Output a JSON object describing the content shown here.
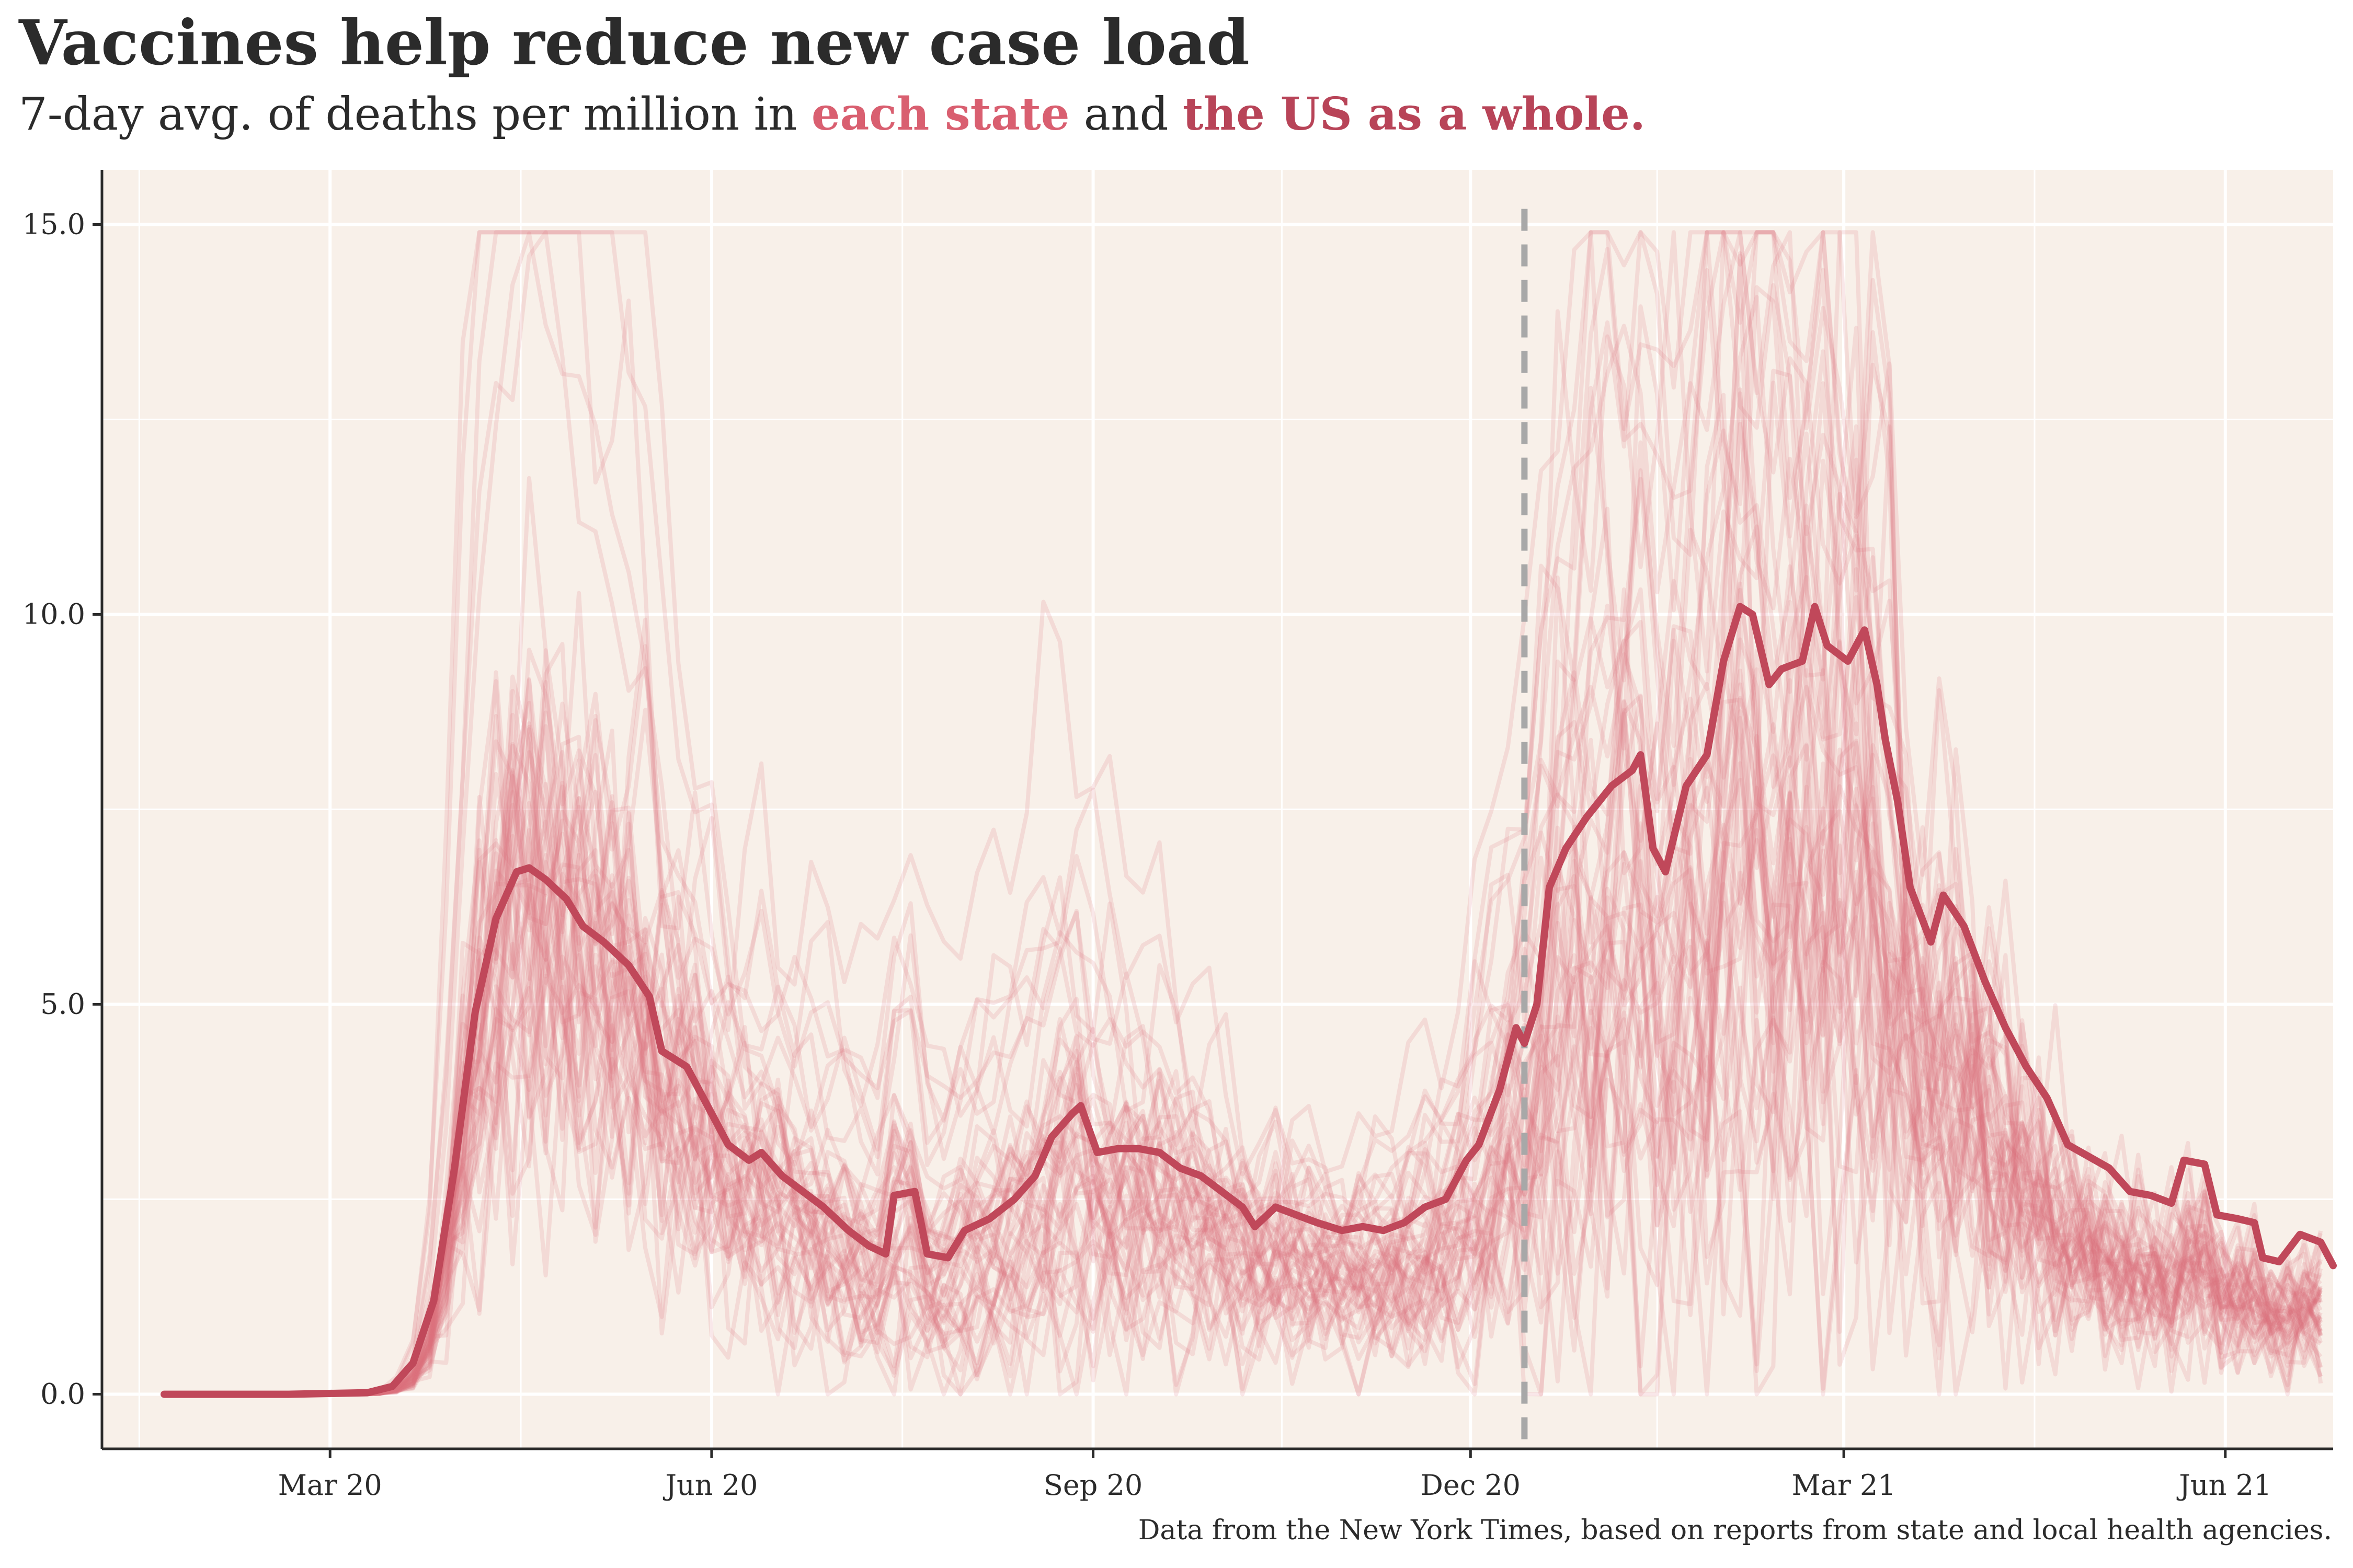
{
  "chart_data": {
    "type": "line",
    "title": "Vaccines help reduce new case load",
    "subtitle": {
      "prefix": "7-day avg. of deaths per million in ",
      "states_label": "each state",
      "middle": " and ",
      "us_label": "the US as a whole."
    },
    "caption": "Data from the New York Times, based on reports from state and local health agencies.",
    "xlabel": "",
    "ylabel": "",
    "x_ticks": [
      {
        "date": "2020-03-01",
        "label": "Mar 20"
      },
      {
        "date": "2020-06-01",
        "label": "Jun 20"
      },
      {
        "date": "2020-09-01",
        "label": "Sep 20"
      },
      {
        "date": "2020-12-01",
        "label": "Dec 20"
      },
      {
        "date": "2021-03-01",
        "label": "Mar 21"
      },
      {
        "date": "2021-06-01",
        "label": "Jun 21"
      }
    ],
    "y_ticks": [
      {
        "value": 0,
        "label": "0.0"
      },
      {
        "value": 5,
        "label": "5.0"
      },
      {
        "value": 10,
        "label": "10.0"
      },
      {
        "value": 15,
        "label": "15.0"
      }
    ],
    "xlim": [
      "2020-01-06",
      "2021-06-27"
    ],
    "ylim": [
      -0.7,
      15.7
    ],
    "vline": {
      "date": "2020-12-14",
      "style": "dashed"
    },
    "colors": {
      "panel_bg": "#f8f0e9",
      "grid": "#ffffff",
      "states": "#d9707e",
      "us": "#c0485a",
      "vline": "#a8a8a8",
      "axis": "#2b2b2b",
      "text": "#2b2b2b"
    },
    "series": [
      {
        "name": "the US as a whole.",
        "points": [
          [
            "2020-01-21",
            0
          ],
          [
            "2020-02-20",
            0
          ],
          [
            "2020-03-10",
            0.02
          ],
          [
            "2020-03-16",
            0.1
          ],
          [
            "2020-03-21",
            0.4
          ],
          [
            "2020-03-26",
            1.2
          ],
          [
            "2020-03-31",
            2.9
          ],
          [
            "2020-04-05",
            4.9
          ],
          [
            "2020-04-10",
            6.1
          ],
          [
            "2020-04-15",
            6.7
          ],
          [
            "2020-04-18",
            6.75
          ],
          [
            "2020-04-22",
            6.6
          ],
          [
            "2020-04-27",
            6.35
          ],
          [
            "2020-05-01",
            6.0
          ],
          [
            "2020-05-06",
            5.8
          ],
          [
            "2020-05-12",
            5.5
          ],
          [
            "2020-05-17",
            5.1
          ],
          [
            "2020-05-20",
            4.4
          ],
          [
            "2020-05-26",
            4.2
          ],
          [
            "2020-05-31",
            3.7
          ],
          [
            "2020-06-05",
            3.2
          ],
          [
            "2020-06-10",
            3.0
          ],
          [
            "2020-06-13",
            3.1
          ],
          [
            "2020-06-18",
            2.8
          ],
          [
            "2020-06-23",
            2.6
          ],
          [
            "2020-06-28",
            2.4
          ],
          [
            "2020-07-04",
            2.1
          ],
          [
            "2020-07-09",
            1.9
          ],
          [
            "2020-07-13",
            1.8
          ],
          [
            "2020-07-15",
            2.55
          ],
          [
            "2020-07-20",
            2.6
          ],
          [
            "2020-07-23",
            1.8
          ],
          [
            "2020-07-28",
            1.75
          ],
          [
            "2020-08-01",
            2.1
          ],
          [
            "2020-08-07",
            2.25
          ],
          [
            "2020-08-13",
            2.5
          ],
          [
            "2020-08-18",
            2.8
          ],
          [
            "2020-08-22",
            3.3
          ],
          [
            "2020-08-27",
            3.6
          ],
          [
            "2020-08-29",
            3.7
          ],
          [
            "2020-09-02",
            3.1
          ],
          [
            "2020-09-07",
            3.15
          ],
          [
            "2020-09-12",
            3.15
          ],
          [
            "2020-09-17",
            3.1
          ],
          [
            "2020-09-22",
            2.9
          ],
          [
            "2020-09-27",
            2.8
          ],
          [
            "2020-10-02",
            2.6
          ],
          [
            "2020-10-07",
            2.4
          ],
          [
            "2020-10-10",
            2.15
          ],
          [
            "2020-10-15",
            2.4
          ],
          [
            "2020-10-20",
            2.3
          ],
          [
            "2020-10-25",
            2.2
          ],
          [
            "2020-10-31",
            2.1
          ],
          [
            "2020-11-05",
            2.15
          ],
          [
            "2020-11-10",
            2.1
          ],
          [
            "2020-11-15",
            2.2
          ],
          [
            "2020-11-20",
            2.4
          ],
          [
            "2020-11-25",
            2.5
          ],
          [
            "2020-11-30",
            3.0
          ],
          [
            "2020-12-03",
            3.2
          ],
          [
            "2020-12-08",
            3.9
          ],
          [
            "2020-12-12",
            4.7
          ],
          [
            "2020-12-14",
            4.5
          ],
          [
            "2020-12-17",
            5.0
          ],
          [
            "2020-12-20",
            6.5
          ],
          [
            "2020-12-24",
            7.0
          ],
          [
            "2020-12-29",
            7.4
          ],
          [
            "2021-01-04",
            7.8
          ],
          [
            "2021-01-09",
            8.0
          ],
          [
            "2021-01-11",
            8.2
          ],
          [
            "2021-01-14",
            7.0
          ],
          [
            "2021-01-17",
            6.7
          ],
          [
            "2021-01-22",
            7.8
          ],
          [
            "2021-01-27",
            8.2
          ],
          [
            "2021-01-31",
            9.4
          ],
          [
            "2021-02-04",
            10.1
          ],
          [
            "2021-02-07",
            10.0
          ],
          [
            "2021-02-11",
            9.1
          ],
          [
            "2021-02-14",
            9.3
          ],
          [
            "2021-02-19",
            9.4
          ],
          [
            "2021-02-22",
            10.1
          ],
          [
            "2021-02-25",
            9.6
          ],
          [
            "2021-03-02",
            9.4
          ],
          [
            "2021-03-06",
            9.8
          ],
          [
            "2021-03-09",
            9.1
          ],
          [
            "2021-03-11",
            8.4
          ],
          [
            "2021-03-14",
            7.6
          ],
          [
            "2021-03-17",
            6.5
          ],
          [
            "2021-03-22",
            5.8
          ],
          [
            "2021-03-25",
            6.4
          ],
          [
            "2021-03-30",
            6.0
          ],
          [
            "2021-04-04",
            5.3
          ],
          [
            "2021-04-09",
            4.7
          ],
          [
            "2021-04-14",
            4.2
          ],
          [
            "2021-04-19",
            3.8
          ],
          [
            "2021-04-24",
            3.2
          ],
          [
            "2021-04-29",
            3.05
          ],
          [
            "2021-05-04",
            2.9
          ],
          [
            "2021-05-09",
            2.6
          ],
          [
            "2021-05-14",
            2.55
          ],
          [
            "2021-05-19",
            2.45
          ],
          [
            "2021-05-22",
            3.0
          ],
          [
            "2021-05-27",
            2.95
          ],
          [
            "2021-05-30",
            2.3
          ],
          [
            "2021-06-04",
            2.25
          ],
          [
            "2021-06-08",
            2.2
          ],
          [
            "2021-06-10",
            1.75
          ],
          [
            "2021-06-14",
            1.7
          ],
          [
            "2021-06-19",
            2.05
          ],
          [
            "2021-06-24",
            1.95
          ],
          [
            "2021-06-27",
            1.65
          ]
        ]
      }
    ],
    "states_note_hidden": false,
    "state_series_count": 50
  }
}
